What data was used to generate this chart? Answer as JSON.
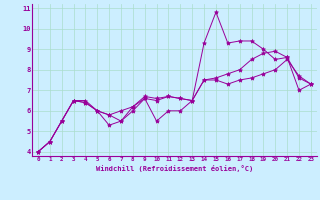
{
  "xlabel": "Windchill (Refroidissement éolien,°C)",
  "bg_color": "#cceeff",
  "line_color": "#990099",
  "grid_color": "#aaddcc",
  "xlim": [
    -0.5,
    23.5
  ],
  "ylim": [
    3.8,
    11.2
  ],
  "xticks": [
    0,
    1,
    2,
    3,
    4,
    5,
    6,
    7,
    8,
    9,
    10,
    11,
    12,
    13,
    14,
    15,
    16,
    17,
    18,
    19,
    20,
    21,
    22,
    23
  ],
  "yticks": [
    4,
    5,
    6,
    7,
    8,
    9,
    10,
    11
  ],
  "series": [
    [
      4.0,
      4.5,
      5.5,
      6.5,
      6.5,
      6.0,
      5.3,
      5.5,
      6.0,
      6.6,
      5.5,
      6.0,
      6.0,
      6.5,
      9.3,
      10.8,
      9.3,
      9.4,
      9.4,
      9.0,
      8.5,
      8.6,
      7.0,
      7.3
    ],
    [
      4.0,
      4.5,
      5.5,
      6.5,
      6.4,
      6.0,
      5.8,
      5.5,
      6.2,
      6.6,
      6.5,
      6.7,
      6.6,
      6.5,
      7.5,
      7.5,
      7.3,
      7.5,
      7.6,
      7.8,
      8.0,
      8.5,
      7.7,
      7.3
    ],
    [
      4.0,
      4.5,
      5.5,
      6.5,
      6.4,
      6.0,
      5.8,
      6.0,
      6.2,
      6.7,
      6.6,
      6.7,
      6.6,
      6.5,
      7.5,
      7.6,
      7.8,
      8.0,
      8.5,
      8.8,
      8.9,
      8.6,
      7.6,
      7.3
    ]
  ]
}
